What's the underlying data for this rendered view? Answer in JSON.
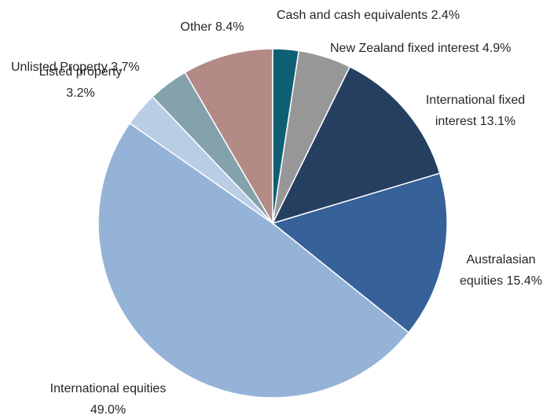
{
  "chart_data": {
    "type": "pie",
    "categories": [
      "Cash and cash equivalents",
      "New Zealand fixed interest",
      "International fixed interest",
      "Australasian equities",
      "International equities",
      "Listed property",
      "Unlisted Property",
      "Other"
    ],
    "values": [
      2.4,
      4.9,
      13.1,
      15.4,
      49.0,
      3.2,
      3.7,
      8.4
    ],
    "value_labels": [
      "2.4%",
      "4.9%",
      "13.1%",
      "15.4%",
      "49.0%",
      "3.2%",
      "3.7%",
      "8.4%"
    ],
    "colors": [
      "#0f5f74",
      "#979797",
      "#243f60",
      "#366199",
      "#95b3d7",
      "#b9cde5",
      "#84a2ac",
      "#b48a86"
    ]
  }
}
